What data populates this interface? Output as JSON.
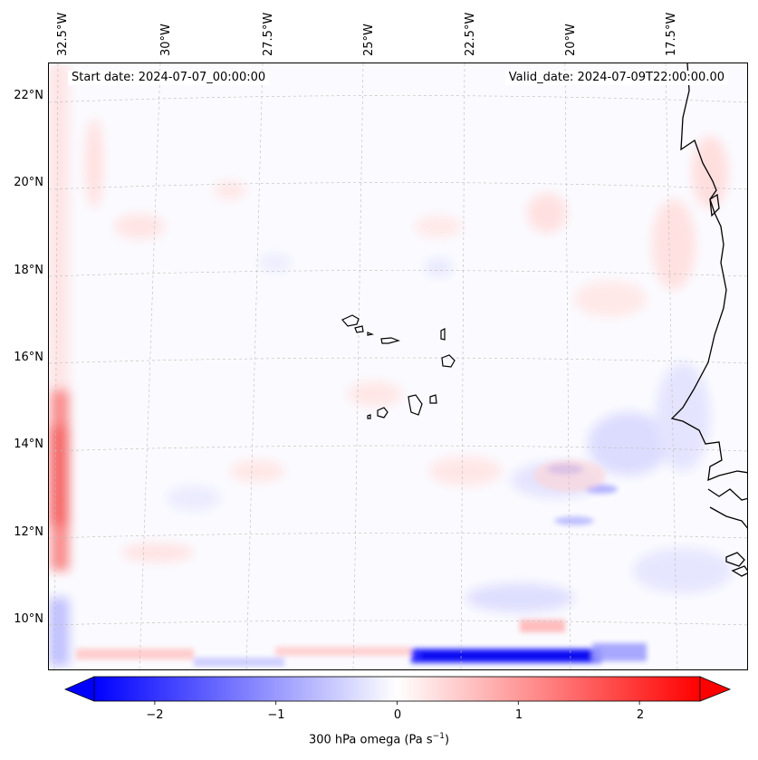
{
  "header": {
    "start_date": "Start date: 2024-07-07_00:00:00",
    "valid_date": "Valid_date: 2024-07-09T22:00:00.00"
  },
  "map": {
    "longitude_ticks": [
      "32.5°W",
      "30°W",
      "27.5°W",
      "25°W",
      "22.5°W",
      "20°W",
      "17.5°W"
    ],
    "latitude_ticks": [
      "22°N",
      "20°N",
      "18°N",
      "16°N",
      "14°N",
      "12°N",
      "10°N"
    ],
    "field": "300 hPa omega",
    "coast_color": "#000000"
  },
  "colorbar": {
    "label_prefix": "300 hPa omega (Pa s",
    "label_exponent": "−1",
    "label_suffix": ")",
    "ticks": [
      "−2",
      "−1",
      "0",
      "1",
      "2"
    ],
    "tick_values": [
      -2,
      -1,
      0,
      1,
      2
    ],
    "range": [
      -2.5,
      2.5
    ],
    "extend": "both",
    "colors": {
      "min": "#0000ff",
      "mid": "#ffffff",
      "max": "#ff0000"
    }
  }
}
